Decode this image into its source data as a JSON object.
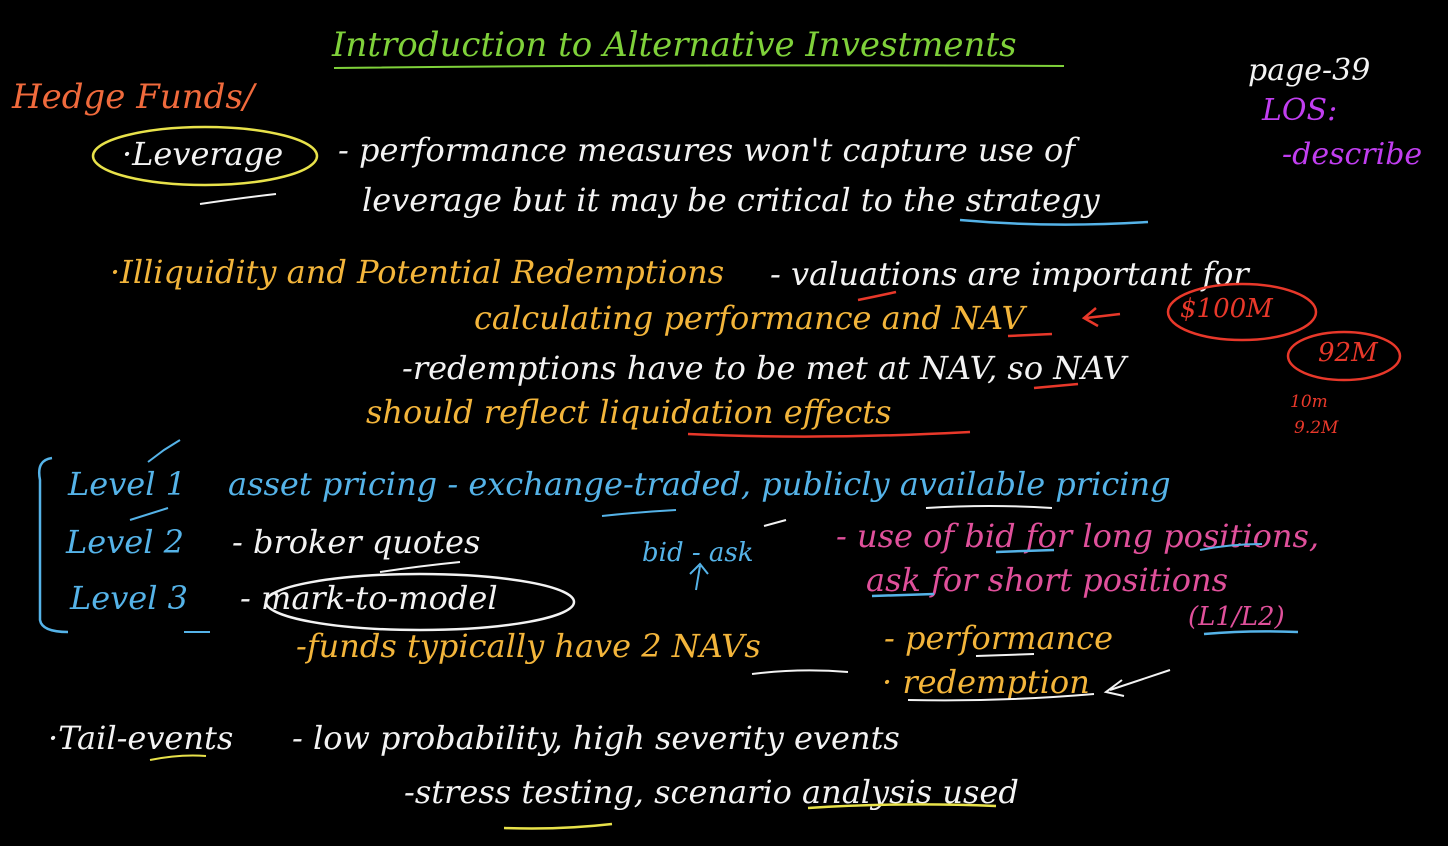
{
  "title": "Introduction to Alternative Investments",
  "topic": "Hedge Funds/",
  "page_ref": "page-39",
  "los": {
    "label": "LOS:",
    "verb": "-describe"
  },
  "leverage": {
    "bullet": "·Leverage",
    "line1": "- performance measures won't capture use of",
    "line2": "leverage but it may be critical to the strategy"
  },
  "illiquidity": {
    "bullet": "·Illiquidity and Potential Redemptions",
    "line1": "- valuations are important for",
    "line2": "calculating performance and NAV",
    "line3": "-redemptions have to be met at NAV, so NAV",
    "line4": "should reflect liquidation effects"
  },
  "side_notes": {
    "aum": "$100M",
    "after": "92M",
    "note1": "10m",
    "note2": "9.2M"
  },
  "levels": [
    {
      "label": "Level 1",
      "desc": "asset pricing - exchange-traded, publicly available pricing"
    },
    {
      "label": "Level 2",
      "desc": "- broker quotes"
    },
    {
      "label": "Level 3",
      "desc": "- mark-to-model"
    }
  ],
  "bid_ask": "bid - ask",
  "bid_note": {
    "line1": "- use of bid for long positions,",
    "line2": "ask for short positions",
    "line3": "(L1/L2)"
  },
  "two_navs": {
    "text": "-funds typically have 2 NAVs",
    "item1": "- performance",
    "item2": "· redemption"
  },
  "tail": {
    "bullet": "·Tail-events",
    "line1": "- low probability, high severity events",
    "line2": "-stress testing, scenario analysis used"
  }
}
